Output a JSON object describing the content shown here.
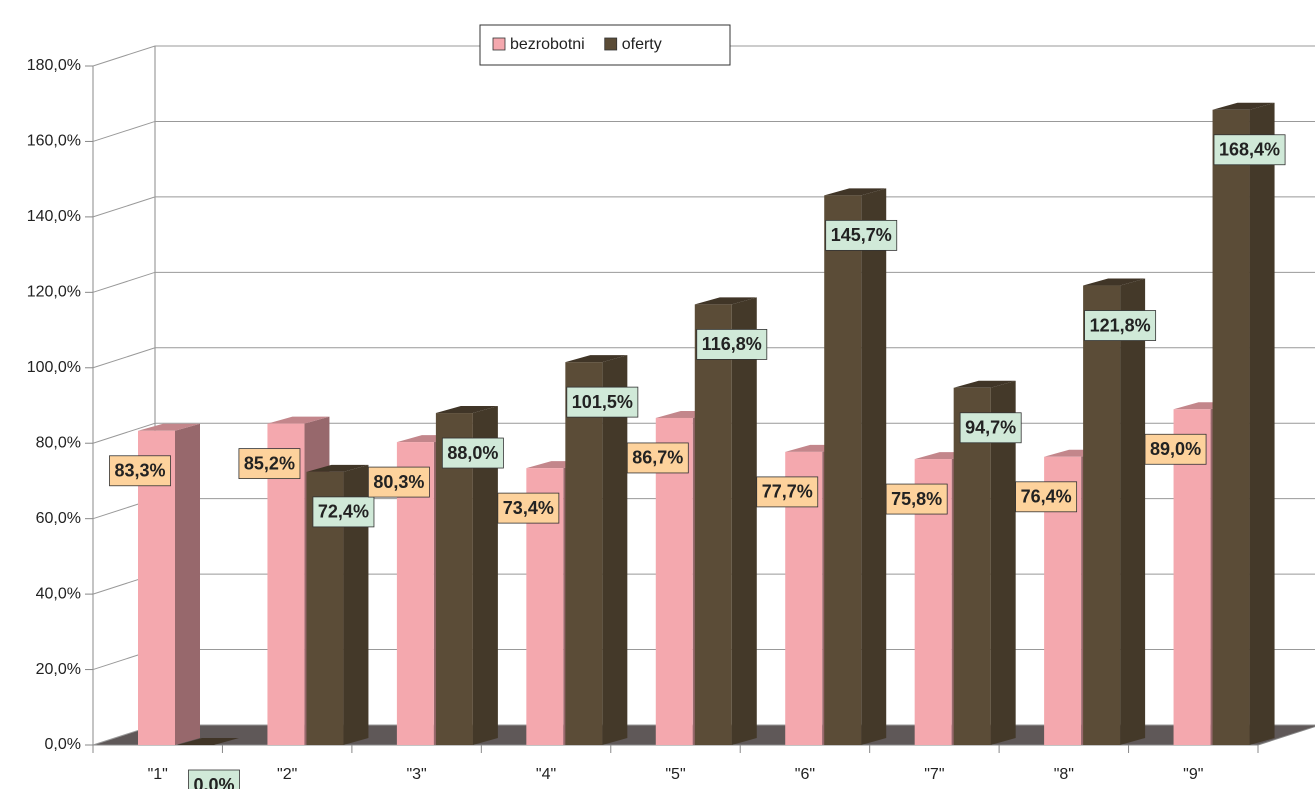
{
  "chart_data": {
    "type": "bar3d",
    "categories": [
      "\"1\"",
      "\"2\"",
      "\"3\"",
      "\"4\"",
      "\"5\"",
      "\"6\"",
      "\"7\"",
      "\"8\"",
      "\"9\""
    ],
    "series": [
      {
        "name": "bezrobotni",
        "color": "#f4a8ae",
        "label_color": "#fdd29c",
        "values": [
          83.3,
          85.2,
          80.3,
          73.4,
          86.7,
          77.7,
          75.8,
          76.4,
          89.0
        ],
        "value_labels": [
          "83,3%",
          "85,2%",
          "80,3%",
          "73,4%",
          "86,7%",
          "77,7%",
          "75,8%",
          "76,4%",
          "89,0%"
        ]
      },
      {
        "name": "oferty",
        "color": "#5b4c37",
        "label_color": "#d0e9d8",
        "values": [
          0.0,
          72.4,
          88.0,
          101.5,
          116.8,
          145.7,
          94.7,
          121.8,
          168.4
        ],
        "value_labels": [
          "0,0%",
          "72,4%",
          "88,0%",
          "101,5%",
          "116,8%",
          "145,7%",
          "94,7%",
          "121,8%",
          "168,4%"
        ]
      }
    ],
    "ylim": [
      0,
      180
    ],
    "yticks": [
      {
        "value": 0,
        "label": "0,0%"
      },
      {
        "value": 20,
        "label": "20,0%"
      },
      {
        "value": 40,
        "label": "40,0%"
      },
      {
        "value": 60,
        "label": "60,0%"
      },
      {
        "value": 80,
        "label": "80,0%"
      },
      {
        "value": 100,
        "label": "100,0%"
      },
      {
        "value": 120,
        "label": "120,0%"
      },
      {
        "value": 140,
        "label": "140,0%"
      },
      {
        "value": 160,
        "label": "160,0%"
      },
      {
        "value": 180,
        "label": "180,0%"
      }
    ],
    "grid": true,
    "legend": "top"
  }
}
